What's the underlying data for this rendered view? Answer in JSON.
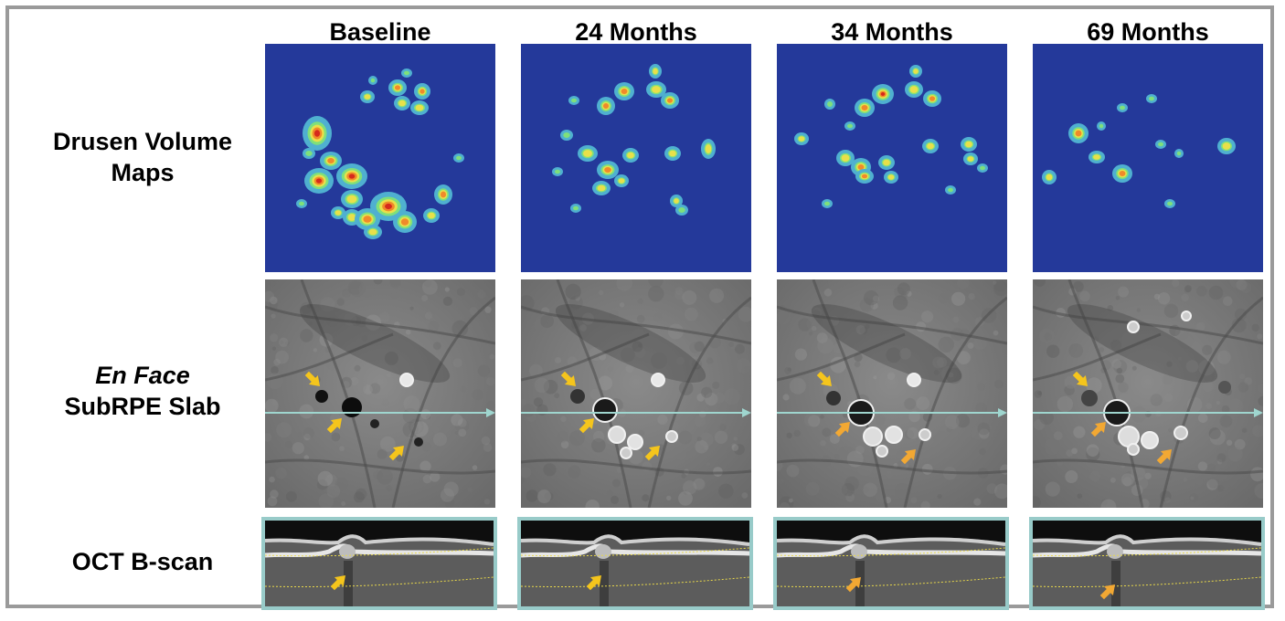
{
  "columns": [
    {
      "title": "Baseline"
    },
    {
      "title": "24 Months"
    },
    {
      "title": "34 Months"
    },
    {
      "title": "69 Months"
    }
  ],
  "rows": {
    "drusen": {
      "line1": "Drusen Volume",
      "line2": "Maps"
    },
    "enface": {
      "line1": "En Face",
      "line2": "SubRPE Slab"
    },
    "oct": {
      "line1": "OCT B-scan"
    }
  },
  "colors": {
    "map_background": "#24399a",
    "arrow_yellow": "#f5c51c",
    "arrow_orange": "#f2a833",
    "scan_line": "#9fd6cf",
    "oct_border": "#98cbc9",
    "frame": "#9a9a9a"
  }
}
